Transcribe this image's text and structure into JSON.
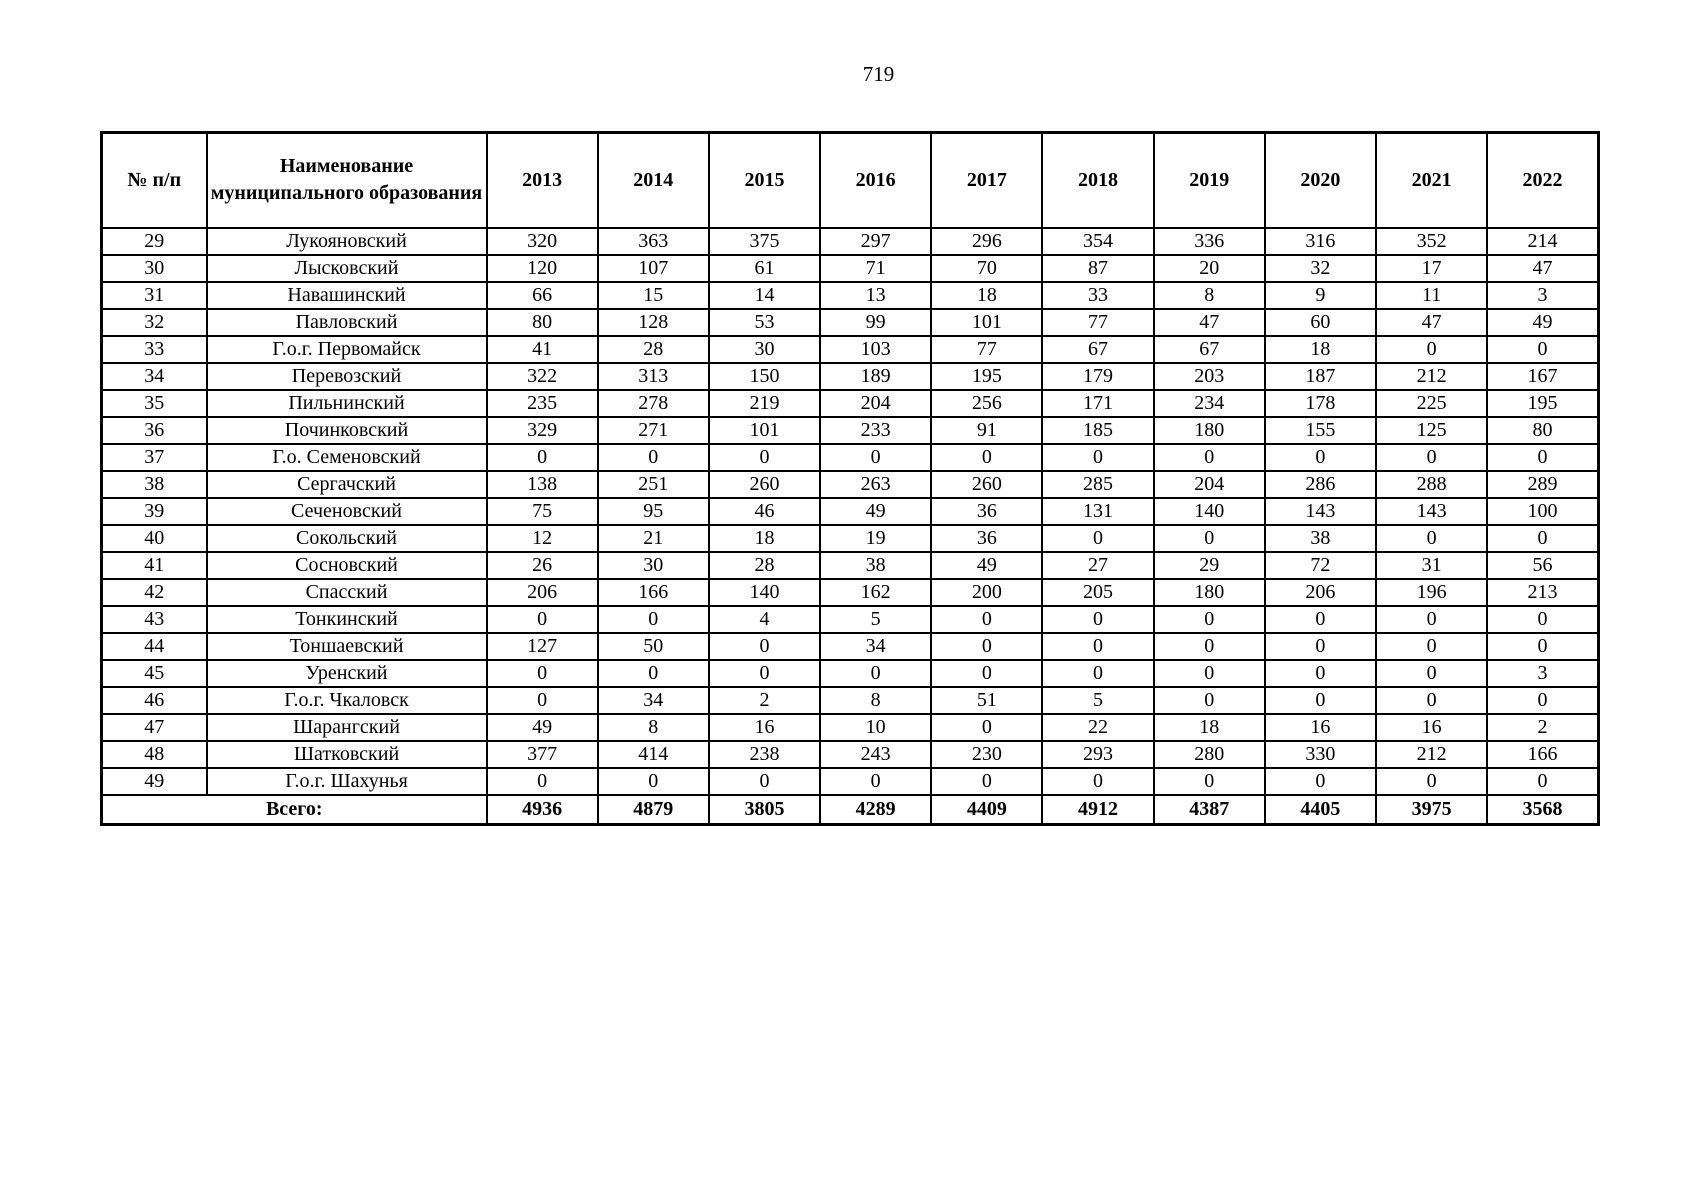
{
  "page": {
    "number": "719"
  },
  "table": {
    "headers": {
      "num": "№ п/п",
      "name": "Наименование муниципального образования",
      "years": [
        "2013",
        "2014",
        "2015",
        "2016",
        "2017",
        "2018",
        "2019",
        "2020",
        "2021",
        "2022"
      ]
    },
    "rows": [
      {
        "num": "29",
        "name": "Лукояновский",
        "values": [
          320,
          363,
          375,
          297,
          296,
          354,
          336,
          316,
          352,
          214
        ]
      },
      {
        "num": "30",
        "name": "Лысковский",
        "values": [
          120,
          107,
          61,
          71,
          70,
          87,
          20,
          32,
          17,
          47
        ]
      },
      {
        "num": "31",
        "name": "Навашинский",
        "values": [
          66,
          15,
          14,
          13,
          18,
          33,
          8,
          9,
          11,
          3
        ]
      },
      {
        "num": "32",
        "name": "Павловский",
        "values": [
          80,
          128,
          53,
          99,
          101,
          77,
          47,
          60,
          47,
          49
        ]
      },
      {
        "num": "33",
        "name": "Г.о.г. Первомайск",
        "values": [
          41,
          28,
          30,
          103,
          77,
          67,
          67,
          18,
          0,
          0
        ]
      },
      {
        "num": "34",
        "name": "Перевозский",
        "values": [
          322,
          313,
          150,
          189,
          195,
          179,
          203,
          187,
          212,
          167
        ]
      },
      {
        "num": "35",
        "name": "Пильнинский",
        "values": [
          235,
          278,
          219,
          204,
          256,
          171,
          234,
          178,
          225,
          195
        ]
      },
      {
        "num": "36",
        "name": "Починковский",
        "values": [
          329,
          271,
          101,
          233,
          91,
          185,
          180,
          155,
          125,
          80
        ]
      },
      {
        "num": "37",
        "name": "Г.о. Семеновский",
        "values": [
          0,
          0,
          0,
          0,
          0,
          0,
          0,
          0,
          0,
          0
        ]
      },
      {
        "num": "38",
        "name": "Сергачский",
        "values": [
          138,
          251,
          260,
          263,
          260,
          285,
          204,
          286,
          288,
          289
        ]
      },
      {
        "num": "39",
        "name": "Сеченовский",
        "values": [
          75,
          95,
          46,
          49,
          36,
          131,
          140,
          143,
          143,
          100
        ]
      },
      {
        "num": "40",
        "name": "Сокольский",
        "values": [
          12,
          21,
          18,
          19,
          36,
          0,
          0,
          38,
          0,
          0
        ]
      },
      {
        "num": "41",
        "name": "Сосновский",
        "values": [
          26,
          30,
          28,
          38,
          49,
          27,
          29,
          72,
          31,
          56
        ]
      },
      {
        "num": "42",
        "name": "Спасский",
        "values": [
          206,
          166,
          140,
          162,
          200,
          205,
          180,
          206,
          196,
          213
        ]
      },
      {
        "num": "43",
        "name": "Тонкинский",
        "values": [
          0,
          0,
          4,
          5,
          0,
          0,
          0,
          0,
          0,
          0
        ]
      },
      {
        "num": "44",
        "name": "Тоншаевский",
        "values": [
          127,
          50,
          0,
          34,
          0,
          0,
          0,
          0,
          0,
          0
        ]
      },
      {
        "num": "45",
        "name": "Уренский",
        "values": [
          0,
          0,
          0,
          0,
          0,
          0,
          0,
          0,
          0,
          3
        ]
      },
      {
        "num": "46",
        "name": "Г.о.г. Чкаловск",
        "values": [
          0,
          34,
          2,
          8,
          51,
          5,
          0,
          0,
          0,
          0
        ]
      },
      {
        "num": "47",
        "name": "Шарангский",
        "values": [
          49,
          8,
          16,
          10,
          0,
          22,
          18,
          16,
          16,
          2
        ]
      },
      {
        "num": "48",
        "name": "Шатковский",
        "values": [
          377,
          414,
          238,
          243,
          230,
          293,
          280,
          330,
          212,
          166
        ]
      },
      {
        "num": "49",
        "name": "Г.о.г. Шахунья",
        "values": [
          0,
          0,
          0,
          0,
          0,
          0,
          0,
          0,
          0,
          0
        ]
      }
    ],
    "total": {
      "label": "Всего:",
      "values": [
        4936,
        4879,
        3805,
        4289,
        4409,
        4912,
        4387,
        4405,
        3975,
        3568
      ]
    }
  }
}
